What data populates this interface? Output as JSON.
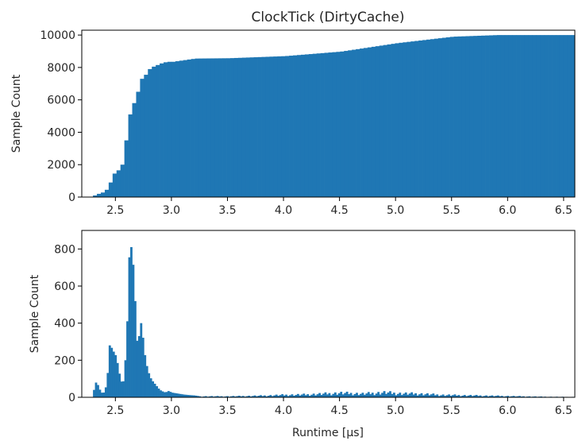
{
  "title": "ClockTick (DirtyCache)",
  "chart_data": [
    {
      "type": "bar",
      "variant": "cumulative-histogram",
      "title": "ClockTick (DirtyCache)",
      "xlabel": "",
      "ylabel": "Sample Count",
      "xlim": [
        2.2,
        6.6
      ],
      "ylim": [
        0,
        10300
      ],
      "xticks": [
        "2.5",
        "3.0",
        "3.5",
        "4.0",
        "4.5",
        "5.0",
        "5.5",
        "6.0",
        "6.5"
      ],
      "yticks": [
        "0",
        "2000",
        "4000",
        "6000",
        "8000",
        "10000"
      ],
      "color": "#1f77b4",
      "bin_width": 0.035,
      "x": [
        2.3,
        3.0,
        3.2,
        3.5,
        4.0,
        4.5,
        5.0,
        5.5,
        5.9,
        6.6
      ],
      "values": [
        0,
        8350,
        8550,
        8570,
        8700,
        8980,
        9500,
        9900,
        10000,
        10000
      ],
      "steep_segment": {
        "x": [
          2.3,
          2.335,
          2.37,
          2.405,
          2.44,
          2.475,
          2.51,
          2.545,
          2.58,
          2.615,
          2.65,
          2.685,
          2.72,
          2.755,
          2.79,
          2.825,
          2.86,
          2.895,
          2.93,
          2.965
        ],
        "values": [
          100,
          200,
          280,
          450,
          900,
          1450,
          1650,
          2000,
          3500,
          5100,
          5800,
          6500,
          7300,
          7550,
          7900,
          8050,
          8150,
          8250,
          8320,
          8350
        ]
      }
    },
    {
      "type": "bar",
      "variant": "histogram",
      "title": "",
      "xlabel": "Runtime [µs]",
      "ylabel": "Sample Count",
      "xlim": [
        2.2,
        6.6
      ],
      "ylim": [
        0,
        900
      ],
      "xticks": [
        "2.5",
        "3.0",
        "3.5",
        "4.0",
        "4.5",
        "5.0",
        "5.5",
        "6.0",
        "6.5"
      ],
      "yticks": [
        "0",
        "200",
        "400",
        "600",
        "800"
      ],
      "color": "#1f77b4",
      "bin_width": 0.0175,
      "x": [
        2.3,
        2.32,
        2.34,
        2.36,
        2.38,
        2.4,
        2.42,
        2.44,
        2.46,
        2.48,
        2.5,
        2.52,
        2.54,
        2.56,
        2.58,
        2.6,
        2.62,
        2.64,
        2.66,
        2.68,
        2.7,
        2.72,
        2.74,
        2.76,
        2.78,
        2.8,
        2.82,
        2.84,
        2.86,
        2.88,
        2.9,
        2.92,
        2.94,
        2.96,
        2.98,
        3.0,
        3.05,
        3.1,
        3.15,
        3.2,
        3.25,
        3.5,
        3.8,
        4.0,
        4.2,
        4.5,
        4.7,
        4.9,
        5.0,
        5.2,
        5.4,
        5.6,
        5.8,
        6.1,
        6.3,
        6.5
      ],
      "values": [
        40,
        85,
        60,
        30,
        20,
        35,
        110,
        280,
        265,
        240,
        220,
        150,
        90,
        70,
        200,
        440,
        860,
        780,
        650,
        300,
        320,
        400,
        310,
        200,
        150,
        110,
        90,
        75,
        60,
        45,
        35,
        30,
        25,
        35,
        30,
        25,
        20,
        15,
        12,
        10,
        5,
        5,
        8,
        12,
        14,
        22,
        18,
        25,
        20,
        18,
        12,
        10,
        8,
        5,
        3,
        2
      ]
    }
  ]
}
